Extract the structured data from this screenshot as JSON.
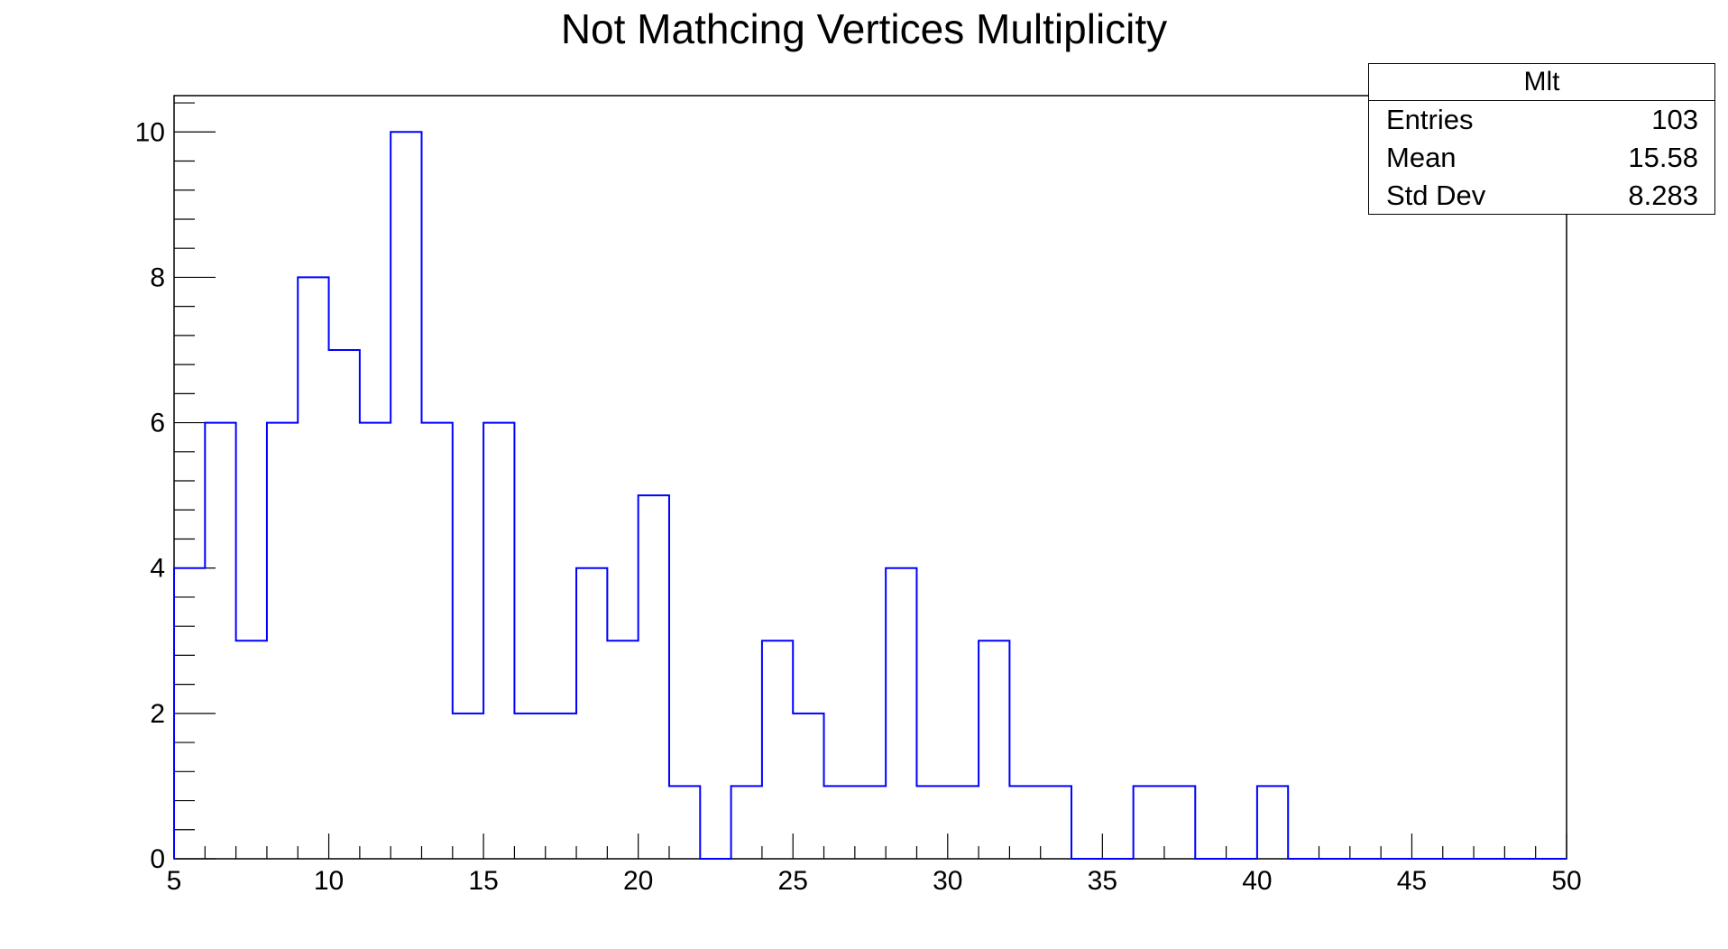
{
  "chart_data": {
    "type": "histogram",
    "title": "Not Mathcing Vertices Multiplicity",
    "xlabel": "",
    "ylabel": "",
    "xlim": [
      5,
      50
    ],
    "ylim": [
      0,
      10.5
    ],
    "xticks": [
      5,
      10,
      15,
      20,
      25,
      30,
      35,
      40,
      45,
      50
    ],
    "yticks": [
      0,
      2,
      4,
      6,
      8,
      10
    ],
    "bin_width": 1,
    "series": [
      {
        "color": "#0000ff",
        "bins": [
          5,
          6,
          7,
          8,
          9,
          10,
          11,
          12,
          13,
          14,
          15,
          16,
          17,
          18,
          19,
          20,
          21,
          22,
          23,
          24,
          25,
          26,
          27,
          28,
          29,
          30,
          31,
          32,
          33,
          34,
          35,
          36,
          37,
          38,
          39,
          40,
          41,
          42,
          43,
          44,
          45,
          46,
          47,
          48,
          49
        ],
        "values": [
          4,
          6,
          3,
          6,
          8,
          7,
          6,
          10,
          6,
          2,
          6,
          2,
          2,
          4,
          3,
          5,
          1,
          0,
          1,
          3,
          2,
          1,
          1,
          4,
          1,
          1,
          3,
          1,
          1,
          0,
          0,
          1,
          1,
          0,
          0,
          1,
          0,
          0,
          0,
          0,
          0,
          0,
          0,
          0,
          0
        ]
      }
    ],
    "grid": false,
    "stats_box": {
      "title": "Mlt",
      "rows": [
        {
          "label": "Entries",
          "value": "103"
        },
        {
          "label": "Mean",
          "value": "15.58"
        },
        {
          "label": "Std Dev",
          "value": "8.283"
        }
      ]
    }
  }
}
